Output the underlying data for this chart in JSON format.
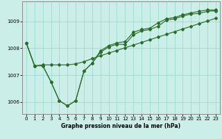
{
  "title": "Graphe pression niveau de la mer (hPa)",
  "bg_color": "#cceee8",
  "grid_color": "#99ddcc",
  "line_color": "#2a6e2a",
  "xlim": [
    -0.5,
    23.5
  ],
  "ylim": [
    1005.55,
    1009.75
  ],
  "x_ticks": [
    0,
    1,
    2,
    3,
    4,
    5,
    6,
    7,
    8,
    9,
    10,
    11,
    12,
    13,
    14,
    15,
    16,
    17,
    18,
    19,
    20,
    21,
    22,
    23
  ],
  "y_ticks": [
    1006,
    1007,
    1008,
    1009
  ],
  "series1": [
    1008.2,
    1007.35,
    1007.35,
    1006.75,
    1006.05,
    1005.85,
    1006.05,
    1007.15,
    1007.45,
    1007.85,
    1008.05,
    1008.15,
    1008.15,
    1008.5,
    1008.65,
    1008.7,
    1008.82,
    1009.05,
    1009.1,
    1009.2,
    1009.28,
    1009.3,
    1009.38,
    1009.4
  ],
  "series2": [
    1008.2,
    1007.35,
    1007.35,
    1006.75,
    1006.05,
    1005.85,
    1006.05,
    1007.15,
    1007.45,
    1007.9,
    1008.1,
    1008.2,
    1008.25,
    1008.6,
    1008.7,
    1008.75,
    1008.95,
    1009.1,
    1009.15,
    1009.25,
    1009.32,
    1009.38,
    1009.43,
    1009.43
  ],
  "series3": [
    1008.2,
    1007.35,
    1007.38,
    1007.38,
    1007.38,
    1007.38,
    1007.42,
    1007.5,
    1007.62,
    1007.72,
    1007.82,
    1007.92,
    1008.02,
    1008.12,
    1008.22,
    1008.32,
    1008.42,
    1008.52,
    1008.62,
    1008.72,
    1008.82,
    1008.92,
    1009.02,
    1009.12
  ],
  "title_fontsize": 5.5,
  "tick_fontsize": 5,
  "marker_size": 2.0,
  "line_width": 0.85
}
